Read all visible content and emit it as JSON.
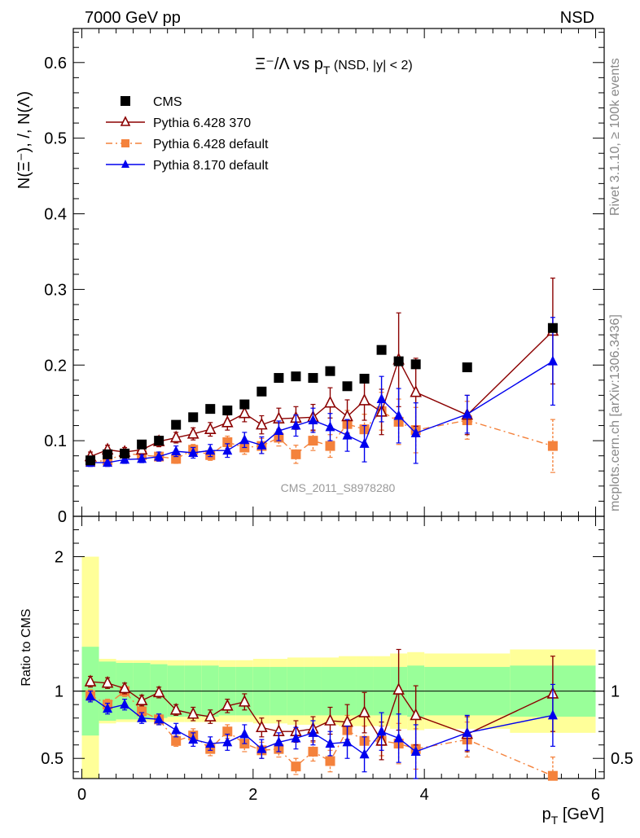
{
  "header": {
    "left": "7000 GeV pp",
    "right": "NSD"
  },
  "side_labels": {
    "rivet": "Rivet 3.1.10, ≥ 100k events",
    "mcplots": "mcplots.cern.ch [arXiv:1306.3436]"
  },
  "watermark": "CMS_2011_S8978280",
  "icons": {
    "cms": "filled-square-marker",
    "py6_370": "open-triangle-marker",
    "py6_def": "filled-square-marker",
    "py8": "filled-triangle-marker"
  },
  "chart_data": [
    {
      "type": "scatter",
      "title": "Ξ⁻/Λ  vs p_T (NSD, |y| < 2)",
      "ylabel": "N(Ξ⁻), /, N(Λ)",
      "xlim": [
        -0.1,
        6.1
      ],
      "ylim": [
        0,
        0.645
      ],
      "yticks": [
        0,
        0.1,
        0.2,
        0.3,
        0.4,
        0.5,
        0.6
      ],
      "ytick_labels": [
        "0",
        "0.1",
        "0.2",
        "0.3",
        "0.4",
        "0.5",
        "0.6"
      ],
      "legend_position": "top-left",
      "series": [
        {
          "name": "CMS",
          "color": "#000000",
          "marker": "square",
          "x": [
            0.1,
            0.3,
            0.5,
            0.7,
            0.9,
            1.1,
            1.3,
            1.5,
            1.7,
            1.9,
            2.1,
            2.3,
            2.5,
            2.7,
            2.9,
            3.1,
            3.3,
            3.5,
            3.7,
            3.9,
            4.5,
            5.5
          ],
          "y": [
            0.074,
            0.082,
            0.083,
            0.095,
            0.1,
            0.121,
            0.131,
            0.142,
            0.14,
            0.148,
            0.165,
            0.183,
            0.185,
            0.183,
            0.192,
            0.172,
            0.182,
            0.22,
            0.205,
            0.201,
            0.197,
            0.249
          ]
        },
        {
          "name": "Pythia 6.428 370",
          "color": "#8b0000",
          "marker": "open-triangle",
          "line": "solid",
          "x": [
            0.1,
            0.3,
            0.5,
            0.7,
            0.9,
            1.1,
            1.3,
            1.5,
            1.7,
            1.9,
            2.1,
            2.3,
            2.5,
            2.7,
            2.9,
            3.1,
            3.3,
            3.5,
            3.7,
            3.9,
            4.5,
            5.5
          ],
          "y": [
            0.079,
            0.088,
            0.085,
            0.088,
            0.099,
            0.104,
            0.109,
            0.115,
            0.124,
            0.136,
            0.121,
            0.129,
            0.13,
            0.131,
            0.15,
            0.132,
            0.153,
            0.138,
            0.207,
            0.164,
            0.134,
            0.245
          ],
          "err": [
            0.006,
            0.006,
            0.006,
            0.006,
            0.007,
            0.007,
            0.008,
            0.009,
            0.01,
            0.011,
            0.012,
            0.014,
            0.015,
            0.017,
            0.02,
            0.022,
            0.026,
            0.03,
            0.062,
            0.045,
            0.026,
            0.07
          ]
        },
        {
          "name": "Pythia 6.428 default",
          "color": "#f4823c",
          "marker": "square",
          "line": "dashdot",
          "x": [
            0.1,
            0.3,
            0.5,
            0.7,
            0.9,
            1.1,
            1.3,
            1.5,
            1.7,
            1.9,
            2.1,
            2.3,
            2.5,
            2.7,
            2.9,
            3.1,
            3.3,
            3.5,
            3.7,
            3.9,
            4.5,
            5.5
          ],
          "y": [
            0.072,
            0.074,
            0.083,
            0.081,
            0.079,
            0.076,
            0.088,
            0.081,
            0.098,
            0.091,
            0.093,
            0.104,
            0.082,
            0.1,
            0.093,
            0.122,
            0.115,
            0.139,
            0.125,
            0.114,
            0.127,
            0.093
          ],
          "err": [
            0.005,
            0.005,
            0.005,
            0.005,
            0.006,
            0.006,
            0.007,
            0.007,
            0.008,
            0.009,
            0.01,
            0.011,
            0.012,
            0.013,
            0.015,
            0.018,
            0.02,
            0.025,
            0.03,
            0.03,
            0.025,
            0.035
          ]
        },
        {
          "name": "Pythia 8.170 default",
          "color": "#0000ee",
          "marker": "triangle",
          "line": "solid",
          "x": [
            0.1,
            0.3,
            0.5,
            0.7,
            0.9,
            1.1,
            1.3,
            1.5,
            1.7,
            1.9,
            2.1,
            2.3,
            2.5,
            2.7,
            2.9,
            3.1,
            3.3,
            3.5,
            3.7,
            3.9,
            4.5,
            5.5
          ],
          "y": [
            0.071,
            0.071,
            0.075,
            0.076,
            0.079,
            0.086,
            0.084,
            0.087,
            0.087,
            0.101,
            0.094,
            0.113,
            0.12,
            0.127,
            0.118,
            0.107,
            0.096,
            0.155,
            0.133,
            0.11,
            0.135,
            0.205
          ],
          "err": [
            0.005,
            0.005,
            0.005,
            0.005,
            0.006,
            0.007,
            0.007,
            0.008,
            0.009,
            0.01,
            0.011,
            0.013,
            0.014,
            0.016,
            0.018,
            0.021,
            0.024,
            0.03,
            0.036,
            0.04,
            0.025,
            0.058
          ]
        }
      ]
    },
    {
      "type": "scatter",
      "ylabel": "Ratio to CMS",
      "xlabel": "p_T [GeV]",
      "xlim": [
        -0.1,
        6.1
      ],
      "ylim": [
        0.35,
        2.3
      ],
      "xticks": [
        0,
        2,
        4,
        6
      ],
      "xtick_labels": [
        "0",
        "2",
        "4",
        "6"
      ],
      "yticks": [
        0.5,
        1,
        2
      ],
      "ytick_labels": [
        "0.5",
        "1",
        "2"
      ],
      "bands": {
        "x_edges": [
          0.0,
          0.2,
          0.4,
          0.6,
          0.8,
          1.0,
          1.2,
          1.4,
          1.6,
          1.8,
          2.0,
          2.2,
          2.4,
          2.6,
          2.8,
          3.0,
          3.2,
          3.4,
          3.6,
          3.8,
          4.0,
          5.0,
          6.0
        ],
        "stat_half": [
          0.33,
          0.22,
          0.21,
          0.21,
          0.2,
          0.19,
          0.19,
          0.19,
          0.18,
          0.18,
          0.18,
          0.18,
          0.18,
          0.18,
          0.18,
          0.18,
          0.18,
          0.18,
          0.18,
          0.19,
          0.18,
          0.19
        ],
        "total_half": [
          1.0,
          0.24,
          0.23,
          0.23,
          0.23,
          0.23,
          0.23,
          0.23,
          0.23,
          0.23,
          0.24,
          0.24,
          0.25,
          0.25,
          0.25,
          0.26,
          0.26,
          0.26,
          0.28,
          0.29,
          0.28,
          0.31
        ],
        "stat_color": "#99ff99",
        "total_color": "#ffff99"
      },
      "series": [
        {
          "name": "Pythia 6.428 370",
          "color": "#8b0000",
          "marker": "open-triangle",
          "line": "solid",
          "y": [
            1.07,
            1.06,
            1.02,
            0.93,
            0.99,
            0.86,
            0.83,
            0.81,
            0.89,
            0.92,
            0.73,
            0.7,
            0.7,
            0.72,
            0.78,
            0.77,
            0.84,
            0.63,
            1.01,
            0.82,
            0.68,
            0.98
          ],
          "err": [
            0.04,
            0.04,
            0.04,
            0.04,
            0.04,
            0.04,
            0.05,
            0.05,
            0.05,
            0.06,
            0.07,
            0.08,
            0.08,
            0.09,
            0.1,
            0.13,
            0.15,
            0.14,
            0.3,
            0.22,
            0.13,
            0.28
          ]
        },
        {
          "name": "Pythia 6.428 default",
          "color": "#f4823c",
          "marker": "square",
          "line": "dashdot",
          "y": [
            0.97,
            0.9,
            1.0,
            0.85,
            0.79,
            0.63,
            0.67,
            0.57,
            0.7,
            0.61,
            0.56,
            0.57,
            0.44,
            0.55,
            0.48,
            0.71,
            0.63,
            0.63,
            0.61,
            0.57,
            0.64,
            0.37
          ],
          "err": [
            0.04,
            0.04,
            0.04,
            0.04,
            0.04,
            0.04,
            0.05,
            0.05,
            0.05,
            0.06,
            0.06,
            0.06,
            0.06,
            0.07,
            0.08,
            0.11,
            0.11,
            0.11,
            0.15,
            0.15,
            0.13,
            0.14
          ]
        },
        {
          "name": "Pythia 8.170 default",
          "color": "#0000ee",
          "marker": "triangle",
          "line": "solid",
          "y": [
            0.96,
            0.87,
            0.9,
            0.8,
            0.79,
            0.71,
            0.64,
            0.61,
            0.62,
            0.68,
            0.57,
            0.62,
            0.65,
            0.69,
            0.61,
            0.62,
            0.53,
            0.7,
            0.65,
            0.55,
            0.69,
            0.82
          ],
          "err": [
            0.04,
            0.04,
            0.04,
            0.04,
            0.04,
            0.05,
            0.05,
            0.05,
            0.06,
            0.07,
            0.07,
            0.07,
            0.08,
            0.09,
            0.09,
            0.12,
            0.13,
            0.14,
            0.18,
            0.2,
            0.13,
            0.23
          ]
        }
      ]
    }
  ]
}
